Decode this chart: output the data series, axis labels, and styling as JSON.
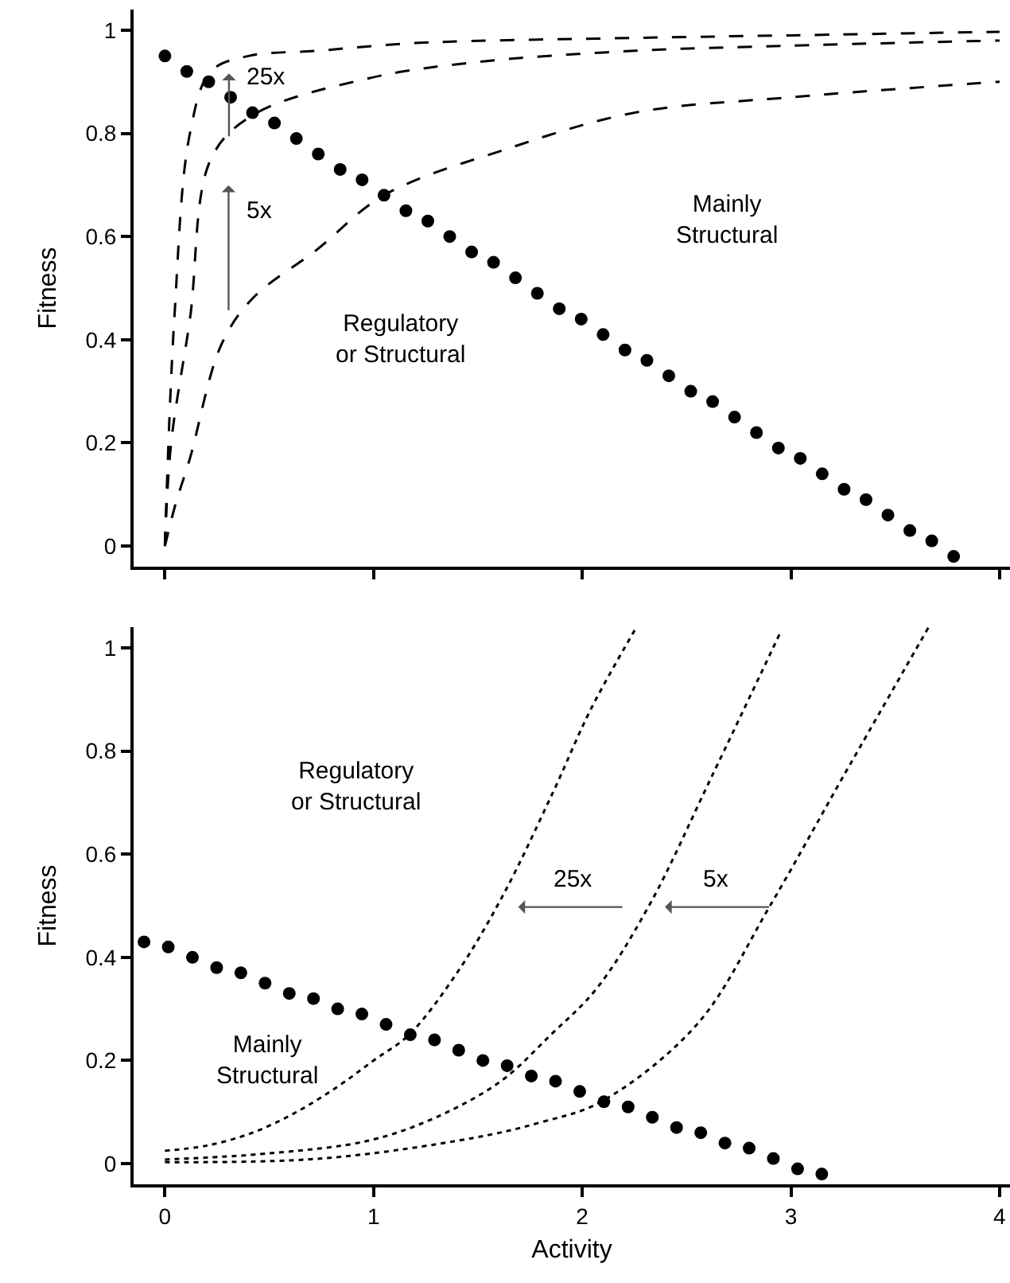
{
  "chart_data": [
    {
      "type": "line",
      "ylabel": "Fitness",
      "xlim": [
        -0.15,
        4.05
      ],
      "ylim": [
        -0.04,
        1.04
      ],
      "xticks": [
        {
          "value": 0,
          "label": null
        },
        {
          "value": 1,
          "label": null
        },
        {
          "value": 2,
          "label": null
        },
        {
          "value": 3,
          "label": null
        },
        {
          "value": 4,
          "label": null
        }
      ],
      "yticks": [
        0,
        0.2,
        0.4,
        0.6,
        0.8,
        1
      ],
      "tick_labels": "y",
      "grid": false,
      "series": [
        {
          "line_style": "dashed",
          "color": "#000000",
          "x": [
            0,
            0.045,
            0.12,
            0.22,
            0.4,
            0.73,
            1.2,
            2.25,
            3,
            4
          ],
          "values": [
            0,
            0.44,
            0.8,
            0.92,
            0.95,
            0.96,
            0.975,
            0.985,
            0.99,
            0.997
          ]
        },
        {
          "line_style": "dashed",
          "color": "#000000",
          "x": [
            0,
            0.03,
            0.12,
            0.22,
            0.42,
            0.98,
            1.49,
            2.25,
            3,
            4
          ],
          "values": [
            0,
            0.2,
            0.44,
            0.75,
            0.835,
            0.907,
            0.938,
            0.96,
            0.97,
            0.98
          ]
        },
        {
          "line_style": "dashed",
          "color": "#000000",
          "x": [
            0,
            0.05,
            0.12,
            0.27,
            0.42,
            0.73,
            1.05,
            1.64,
            2.25,
            3,
            4
          ],
          "values": [
            0,
            0.08,
            0.17,
            0.39,
            0.48,
            0.575,
            0.68,
            0.77,
            0.84,
            0.87,
            0.9
          ]
        },
        {
          "type": "scatter",
          "marker": "circle",
          "color": "#000000",
          "x": [
            0,
            0.105,
            0.21,
            0.315,
            0.42,
            0.525,
            0.63,
            0.735,
            0.84,
            0.945,
            1.05,
            1.155,
            1.26,
            1.365,
            1.47,
            1.575,
            1.68,
            1.785,
            1.89,
            1.995,
            2.1,
            2.205,
            2.31,
            2.415,
            2.52,
            2.625,
            2.73,
            2.835,
            2.94,
            3.045,
            3.15,
            3.255,
            3.36,
            3.465,
            3.57,
            3.675,
            3.78
          ],
          "values": [
            0.95,
            0.92,
            0.9,
            0.87,
            0.84,
            0.82,
            0.79,
            0.76,
            0.73,
            0.71,
            0.68,
            0.65,
            0.63,
            0.6,
            0.57,
            0.55,
            0.52,
            0.49,
            0.46,
            0.44,
            0.41,
            0.38,
            0.36,
            0.33,
            0.3,
            0.28,
            0.25,
            0.22,
            0.19,
            0.17,
            0.14,
            0.11,
            0.09,
            0.06,
            0.03,
            0.01,
            -0.02
          ]
        }
      ],
      "annotations": [
        "Regulatory\nor Structural",
        "Mainly\nStructural",
        "25x",
        "5x"
      ]
    },
    {
      "type": "line",
      "xlabel": "Activity",
      "ylabel": "Fitness",
      "xlim": [
        -0.15,
        4.05
      ],
      "ylim": [
        -0.04,
        1.04
      ],
      "xticks": [
        0,
        1,
        2,
        3,
        4
      ],
      "yticks": [
        0,
        0.2,
        0.4,
        0.6,
        0.8,
        1
      ],
      "grid": false,
      "series": [
        {
          "line_style": "dotted",
          "color": "#000000",
          "x": [
            0,
            0.2,
            0.42,
            0.63,
            0.83,
            1,
            1.17,
            1.4,
            1.62,
            1.86,
            2.04,
            2.26
          ],
          "values": [
            0.025,
            0.035,
            0.06,
            0.1,
            0.15,
            0.2,
            0.25,
            0.37,
            0.52,
            0.72,
            0.88,
            1.04
          ]
        },
        {
          "line_style": "dotted",
          "color": "#000000",
          "x": [
            0,
            0.5,
            0.98,
            1.3,
            1.61,
            1.85,
            2.07,
            2.32,
            2.62,
            2.95
          ],
          "values": [
            0.008,
            0.02,
            0.045,
            0.09,
            0.16,
            0.25,
            0.34,
            0.5,
            0.75,
            1.03
          ]
        },
        {
          "line_style": "dotted",
          "color": "#000000",
          "x": [
            0,
            0.75,
            1.48,
            1.8,
            2.09,
            2.55,
            2.9,
            3.25,
            3.66
          ],
          "values": [
            0.003,
            0.01,
            0.05,
            0.08,
            0.12,
            0.27,
            0.5,
            0.75,
            1.04
          ]
        },
        {
          "type": "scatter",
          "marker": "circle",
          "color": "#000000",
          "x": [
            -0.1,
            0.016,
            0.132,
            0.248,
            0.364,
            0.48,
            0.596,
            0.712,
            0.828,
            0.944,
            1.06,
            1.176,
            1.292,
            1.408,
            1.524,
            1.64,
            1.756,
            1.872,
            1.988,
            2.104,
            2.22,
            2.336,
            2.452,
            2.568,
            2.684,
            2.8,
            2.916,
            3.032,
            3.148
          ],
          "values": [
            0.43,
            0.42,
            0.4,
            0.38,
            0.37,
            0.35,
            0.33,
            0.32,
            0.3,
            0.29,
            0.27,
            0.25,
            0.24,
            0.22,
            0.2,
            0.19,
            0.17,
            0.16,
            0.14,
            0.12,
            0.11,
            0.09,
            0.07,
            0.06,
            0.04,
            0.03,
            0.01,
            -0.01,
            -0.02
          ]
        }
      ],
      "annotations": [
        "Regulatory\nor Structural",
        "Mainly\nStructural",
        "25x",
        "5x"
      ]
    }
  ]
}
